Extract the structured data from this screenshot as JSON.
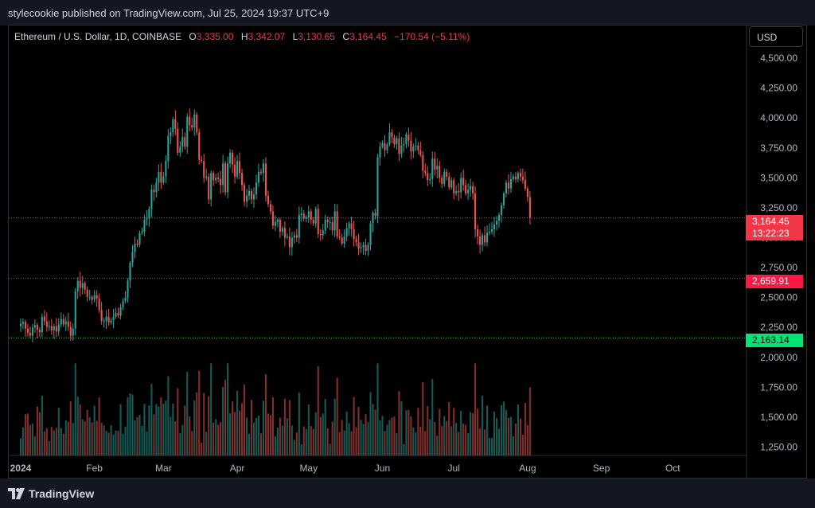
{
  "header": {
    "publish_text": "stylecookie published on TradingView.com, Jul 25, 2024 19:37 UTC+9"
  },
  "symbol": {
    "name": "Ethereum / U.S. Dollar, 1D, COINBASE",
    "o_label": "O",
    "o_value": "3,335.00",
    "h_label": "H",
    "h_value": "3,342.07",
    "l_label": "L",
    "l_value": "3,130.65",
    "c_label": "C",
    "c_value": "3,164.45",
    "change": "−170.54 (−5.11%)"
  },
  "currency_button": "USD",
  "price_tags": {
    "last_price": "3,164.45",
    "countdown": "13:22:23",
    "red_level": "2,659.91",
    "green_level": "2,163.14"
  },
  "footer": {
    "brand": "TradingView"
  },
  "colors": {
    "up": "#26a69a",
    "down": "#ef5350",
    "red_level": "#ff1744",
    "green_level": "#00e676",
    "last_price": "#f23645"
  },
  "chart_data": {
    "type": "candlestick",
    "title": "Ethereum / U.S. Dollar, 1D, COINBASE",
    "y_range": [
      1180,
      4620
    ],
    "y_ticks": [
      "4,500.00",
      "4,250.00",
      "4,000.00",
      "3,750.00",
      "3,500.00",
      "3,250.00",
      "3,000.00",
      "2,750.00",
      "2,500.00",
      "2,250.00",
      "2,000.00",
      "1,750.00",
      "1,500.00",
      "1,250.00"
    ],
    "y_tick_values": [
      4500,
      4250,
      4000,
      3750,
      3500,
      3250,
      3000,
      2750,
      2500,
      2250,
      2000,
      1750,
      1500,
      1250
    ],
    "x_ticks": [
      "2024",
      "Feb",
      "Mar",
      "Apr",
      "May",
      "Jun",
      "Jul",
      "Aug",
      "Sep",
      "Oct"
    ],
    "x_tick_days": [
      0,
      31,
      60,
      91,
      121,
      152,
      182,
      213,
      244,
      274
    ],
    "x_range_days": [
      -5,
      305
    ],
    "last_price": 3164.45,
    "horizontal_levels": [
      {
        "price": 2659.91,
        "color": "red"
      },
      {
        "price": 2163.14,
        "color": "green"
      }
    ],
    "ohlc_closes": [
      2280,
      2295,
      2240,
      2205,
      2180,
      2250,
      2270,
      2230,
      2210,
      2340,
      2300,
      2255,
      2260,
      2225,
      2260,
      2215,
      2275,
      2320,
      2275,
      2300,
      2255,
      2180,
      2240,
      2550,
      2640,
      2580,
      2620,
      2565,
      2505,
      2505,
      2480,
      2520,
      2490,
      2395,
      2305,
      2305,
      2340,
      2290,
      2310,
      2340,
      2370,
      2350,
      2420,
      2470,
      2500,
      2640,
      2790,
      2880,
      2950,
      2940,
      3040,
      3050,
      3150,
      3160,
      3240,
      3400,
      3380,
      3460,
      3550,
      3460,
      3510,
      3640,
      3850,
      3880,
      3990,
      3910,
      3710,
      3760,
      3840,
      3760,
      4010,
      3940,
      3920,
      4030,
      3880,
      3650,
      3640,
      3500,
      3510,
      3320,
      3540,
      3480,
      3500,
      3490,
      3440,
      3620,
      3380,
      3620,
      3710,
      3610,
      3510,
      3640,
      3540,
      3440,
      3300,
      3350,
      3390,
      3320,
      3360,
      3460,
      3550,
      3540,
      3620,
      3350,
      3280,
      3220,
      3100,
      3130,
      3150,
      3050,
      3080,
      3000,
      3010,
      2920,
      3000,
      3020,
      3000,
      3190,
      3200,
      3160,
      3170,
      3220,
      3150,
      3120,
      3240,
      3030,
      3020,
      3060,
      3150,
      3130,
      3130,
      3060,
      3220,
      3010,
      3000,
      2950,
      3010,
      3080,
      3120,
      3070,
      2990,
      2960,
      2910,
      2920,
      2940,
      2890,
      2940,
      3120,
      3210,
      3180,
      3670,
      3760,
      3790,
      3730,
      3780,
      3880,
      3840,
      3780,
      3830,
      3700,
      3770,
      3780,
      3860,
      3810,
      3720,
      3760,
      3770,
      3730,
      3690,
      3560,
      3540,
      3480,
      3490,
      3660,
      3570,
      3600,
      3500,
      3450,
      3550,
      3510,
      3420,
      3480,
      3370,
      3390,
      3380,
      3500,
      3440,
      3370,
      3400,
      3430,
      3370,
      3070,
      3010,
      2940,
      3020,
      2960,
      3040,
      3050,
      3070,
      3110,
      3140,
      3190,
      3270,
      3370,
      3460,
      3410,
      3490,
      3510,
      3490,
      3540,
      3510,
      3480,
      3410,
      3340,
      3164
    ],
    "volume_range": [
      1180,
      2110
    ]
  }
}
